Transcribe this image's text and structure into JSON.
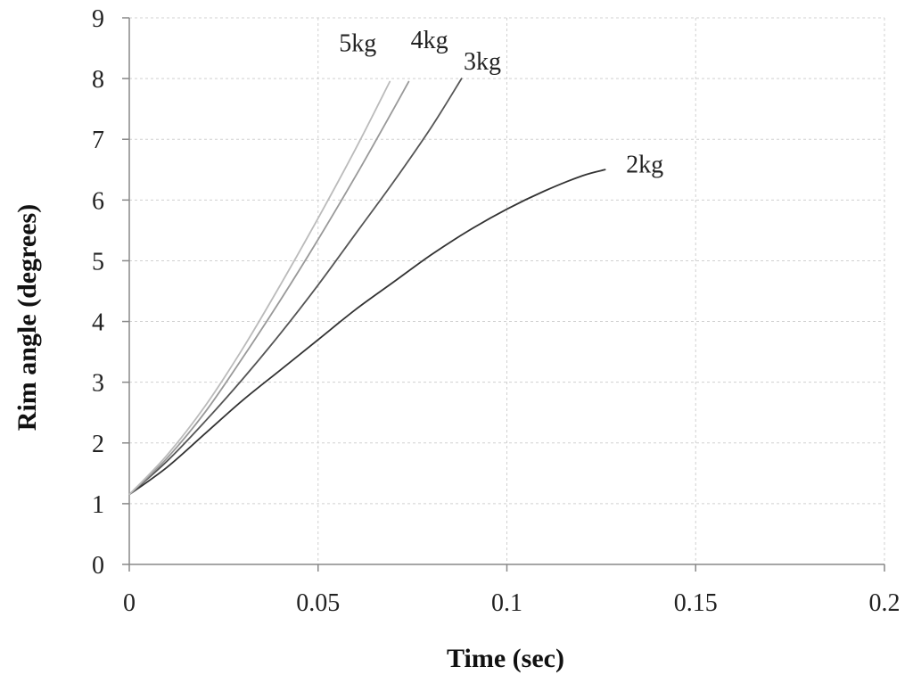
{
  "chart_data": {
    "type": "line",
    "title": "",
    "xlabel": "Time (sec)",
    "ylabel": "Rim angle (degrees)",
    "xlim": [
      0,
      0.2
    ],
    "ylim": [
      0,
      9
    ],
    "x_ticks": [
      0,
      0.05,
      0.1,
      0.15,
      0.2
    ],
    "x_tick_labels": [
      "0",
      "0.05",
      "0.1",
      "0.15",
      "0.2"
    ],
    "y_ticks": [
      0,
      1,
      2,
      3,
      4,
      5,
      6,
      7,
      8,
      9
    ],
    "y_tick_labels": [
      "0",
      "1",
      "2",
      "3",
      "4",
      "5",
      "6",
      "7",
      "8",
      "9"
    ],
    "grid": true,
    "legend": "none",
    "series": [
      {
        "name": "2kg",
        "color": "#333333",
        "x": [
          0,
          0.01,
          0.02,
          0.03,
          0.04,
          0.05,
          0.06,
          0.07,
          0.08,
          0.09,
          0.1,
          0.11,
          0.12,
          0.126
        ],
        "y": [
          1.15,
          1.6,
          2.15,
          2.7,
          3.2,
          3.7,
          4.2,
          4.65,
          5.1,
          5.5,
          5.85,
          6.15,
          6.4,
          6.5
        ]
      },
      {
        "name": "3kg",
        "color": "#555555",
        "x": [
          0,
          0.01,
          0.02,
          0.03,
          0.04,
          0.05,
          0.06,
          0.07,
          0.08,
          0.088
        ],
        "y": [
          1.15,
          1.7,
          2.35,
          3.05,
          3.8,
          4.6,
          5.45,
          6.3,
          7.2,
          8.0
        ]
      },
      {
        "name": "4kg",
        "color": "#999999",
        "x": [
          0,
          0.01,
          0.02,
          0.03,
          0.04,
          0.05,
          0.06,
          0.07,
          0.074
        ],
        "y": [
          1.15,
          1.75,
          2.5,
          3.4,
          4.35,
          5.35,
          6.4,
          7.5,
          7.95
        ]
      },
      {
        "name": "5kg",
        "color": "#bbbbbb",
        "x": [
          0,
          0.01,
          0.02,
          0.03,
          0.04,
          0.05,
          0.06,
          0.069
        ],
        "y": [
          1.15,
          1.8,
          2.6,
          3.55,
          4.6,
          5.7,
          6.85,
          7.95
        ]
      }
    ],
    "series_labels": [
      {
        "text": "5kg",
        "x": 0.0605,
        "y": 8.45
      },
      {
        "text": "4kg",
        "x": 0.0795,
        "y": 8.5
      },
      {
        "text": "3kg",
        "x": 0.0935,
        "y": 8.15
      },
      {
        "text": "2kg",
        "x": 0.1365,
        "y": 6.45
      }
    ]
  }
}
